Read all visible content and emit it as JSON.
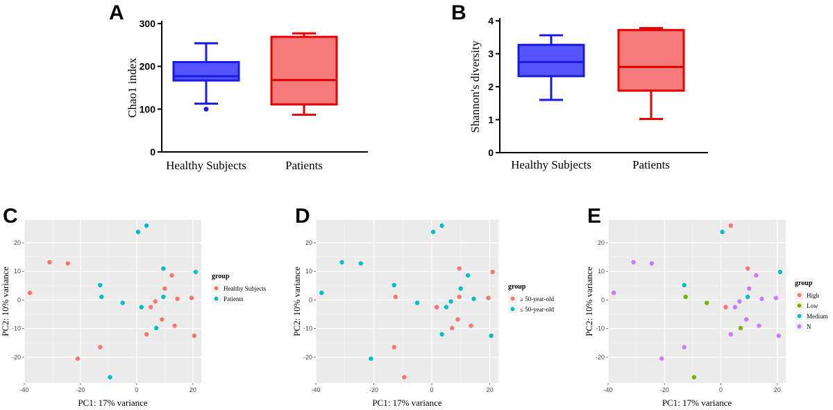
{
  "panels": {
    "a": {
      "letter": "A"
    },
    "b": {
      "letter": "B"
    },
    "c": {
      "letter": "C"
    },
    "d": {
      "letter": "D"
    },
    "e": {
      "letter": "E"
    }
  },
  "chart_data": [
    {
      "id": "a",
      "type": "box",
      "ylabel": "Chao1 index",
      "ylim": [
        0,
        300
      ],
      "yticks": [
        0,
        100,
        200,
        300
      ],
      "categories": [
        "Healthy Subjects",
        "Patients"
      ],
      "colors": {
        "fill": [
          "#5555ff",
          "#f57a7a"
        ],
        "stroke": [
          "#1a1ae6",
          "#e60000"
        ]
      },
      "boxes": [
        {
          "name": "Healthy Subjects",
          "min": 113,
          "q1": 167,
          "median": 177,
          "q3": 210,
          "max": 254,
          "outliers": [
            100
          ]
        },
        {
          "name": "Patients",
          "min": 87,
          "q1": 111,
          "median": 168,
          "q3": 269,
          "max": 277,
          "outliers": []
        }
      ]
    },
    {
      "id": "b",
      "type": "box",
      "ylabel": "Shannon's diversity",
      "ylim": [
        0,
        4
      ],
      "yticks": [
        0,
        1,
        2,
        3,
        4
      ],
      "categories": [
        "Healthy Subjects",
        "Patients"
      ],
      "colors": {
        "fill": [
          "#5555ff",
          "#f57a7a"
        ],
        "stroke": [
          "#1a1ae6",
          "#e60000"
        ]
      },
      "boxes": [
        {
          "name": "Healthy Subjects",
          "min": 1.6,
          "q1": 2.32,
          "median": 2.75,
          "q3": 3.27,
          "max": 3.56,
          "outliers": []
        },
        {
          "name": "Patients",
          "min": 1.02,
          "q1": 1.88,
          "median": 2.6,
          "q3": 3.72,
          "max": 3.78,
          "outliers": []
        }
      ]
    },
    {
      "id": "c",
      "type": "scatter",
      "xlabel": "PC1: 17% variance",
      "ylabel": "PC2: 10% variance",
      "xlim": [
        -40,
        23
      ],
      "ylim": [
        -29,
        28
      ],
      "xticks": [
        -40,
        -20,
        0,
        20
      ],
      "yticks": [
        -20,
        -10,
        0,
        10,
        20
      ],
      "legend_title": "group",
      "groups": [
        {
          "name": "Healthy Subjects",
          "color": "#f8766d"
        },
        {
          "name": "Patients",
          "color": "#00bfc4"
        }
      ],
      "points": [
        {
          "x": -38,
          "y": 2.5,
          "g": 0
        },
        {
          "x": -31,
          "y": 13.2,
          "g": 0
        },
        {
          "x": -24.5,
          "y": 12.8,
          "g": 0
        },
        {
          "x": -21,
          "y": -20.5,
          "g": 0
        },
        {
          "x": -13,
          "y": -16.5,
          "g": 0
        },
        {
          "x": -13,
          "y": 5.2,
          "g": 1
        },
        {
          "x": -12.5,
          "y": 1.1,
          "g": 1
        },
        {
          "x": -9.5,
          "y": -27,
          "g": 1
        },
        {
          "x": -5,
          "y": -1,
          "g": 1
        },
        {
          "x": 0.5,
          "y": 23.8,
          "g": 1
        },
        {
          "x": 3.5,
          "y": 26,
          "g": 1
        },
        {
          "x": 1.7,
          "y": -2.5,
          "g": 1
        },
        {
          "x": 3.5,
          "y": -12,
          "g": 0
        },
        {
          "x": 5,
          "y": -2.5,
          "g": 0
        },
        {
          "x": 6.6,
          "y": -0.5,
          "g": 0
        },
        {
          "x": 7,
          "y": -9.8,
          "g": 1
        },
        {
          "x": 9.5,
          "y": 11,
          "g": 1
        },
        {
          "x": 9.5,
          "y": 1.1,
          "g": 1
        },
        {
          "x": 9,
          "y": -6.8,
          "g": 0
        },
        {
          "x": 10,
          "y": 4,
          "g": 0
        },
        {
          "x": 12.5,
          "y": 8.6,
          "g": 0
        },
        {
          "x": 13.5,
          "y": -9,
          "g": 0
        },
        {
          "x": 14.5,
          "y": 0.4,
          "g": 0
        },
        {
          "x": 19.5,
          "y": 0.7,
          "g": 0
        },
        {
          "x": 20.5,
          "y": -12.5,
          "g": 0
        },
        {
          "x": 21,
          "y": 9.8,
          "g": 1
        }
      ]
    },
    {
      "id": "d",
      "type": "scatter",
      "xlabel": "PC1: 17% variance",
      "ylabel": "PC2: 10% variance",
      "xlim": [
        -40,
        23
      ],
      "ylim": [
        -29,
        28
      ],
      "xticks": [
        -40,
        -20,
        0,
        20
      ],
      "yticks": [
        -20,
        -10,
        0,
        10,
        20
      ],
      "legend_title": "group",
      "groups": [
        {
          "name": "≥ 50-year-old",
          "color": "#f8766d"
        },
        {
          "name": "≤ 50-year-old",
          "color": "#00bfc4"
        }
      ],
      "points": [
        {
          "x": -38,
          "y": 2.5,
          "g": 1
        },
        {
          "x": -31,
          "y": 13.2,
          "g": 1
        },
        {
          "x": -24.5,
          "y": 12.8,
          "g": 1
        },
        {
          "x": -21,
          "y": -20.5,
          "g": 1
        },
        {
          "x": -13,
          "y": -16.5,
          "g": 0
        },
        {
          "x": -13,
          "y": 5.2,
          "g": 1
        },
        {
          "x": -12.5,
          "y": 1.1,
          "g": 0
        },
        {
          "x": -9.5,
          "y": -27,
          "g": 0
        },
        {
          "x": -5,
          "y": -1,
          "g": 1
        },
        {
          "x": 0.5,
          "y": 23.8,
          "g": 1
        },
        {
          "x": 3.5,
          "y": 26,
          "g": 1
        },
        {
          "x": 1.7,
          "y": -2.5,
          "g": 0
        },
        {
          "x": 3.5,
          "y": -12,
          "g": 1
        },
        {
          "x": 5,
          "y": -2.5,
          "g": 1
        },
        {
          "x": 6.6,
          "y": -0.5,
          "g": 1
        },
        {
          "x": 7,
          "y": -9.8,
          "g": 0
        },
        {
          "x": 9.5,
          "y": 11,
          "g": 0
        },
        {
          "x": 9.5,
          "y": 1.1,
          "g": 0
        },
        {
          "x": 9,
          "y": -6.8,
          "g": 0
        },
        {
          "x": 10,
          "y": 4,
          "g": 1
        },
        {
          "x": 12.5,
          "y": 8.6,
          "g": 1
        },
        {
          "x": 13.5,
          "y": -9,
          "g": 0
        },
        {
          "x": 14.5,
          "y": 0.4,
          "g": 1
        },
        {
          "x": 19.5,
          "y": 0.7,
          "g": 0
        },
        {
          "x": 20.5,
          "y": -12.5,
          "g": 1
        },
        {
          "x": 21,
          "y": 9.8,
          "g": 0
        }
      ]
    },
    {
      "id": "e",
      "type": "scatter",
      "xlabel": "PC1: 17% variance",
      "ylabel": "PC2: 10% variance",
      "xlim": [
        -40,
        23
      ],
      "ylim": [
        -29,
        28
      ],
      "xticks": [
        -40,
        -20,
        0,
        20
      ],
      "yticks": [
        -20,
        -10,
        0,
        10,
        20
      ],
      "legend_title": "group",
      "groups": [
        {
          "name": "High",
          "color": "#f8766d"
        },
        {
          "name": "Low",
          "color": "#7cae00"
        },
        {
          "name": "Medium",
          "color": "#00bfc4"
        },
        {
          "name": "N",
          "color": "#c77cff"
        }
      ],
      "points": [
        {
          "x": -38,
          "y": 2.5,
          "g": 3
        },
        {
          "x": -31,
          "y": 13.2,
          "g": 3
        },
        {
          "x": -24.5,
          "y": 12.8,
          "g": 3
        },
        {
          "x": -21,
          "y": -20.5,
          "g": 3
        },
        {
          "x": -13,
          "y": -16.5,
          "g": 3
        },
        {
          "x": -13,
          "y": 5.2,
          "g": 2
        },
        {
          "x": -12.5,
          "y": 1.1,
          "g": 1
        },
        {
          "x": -9.5,
          "y": -27,
          "g": 1
        },
        {
          "x": -5,
          "y": -1,
          "g": 1
        },
        {
          "x": 0.5,
          "y": 23.8,
          "g": 2
        },
        {
          "x": 3.5,
          "y": 26,
          "g": 0
        },
        {
          "x": 1.7,
          "y": -2.5,
          "g": 0
        },
        {
          "x": 3.5,
          "y": -12,
          "g": 3
        },
        {
          "x": 5,
          "y": -2.5,
          "g": 3
        },
        {
          "x": 6.6,
          "y": -0.5,
          "g": 3
        },
        {
          "x": 7,
          "y": -9.8,
          "g": 1
        },
        {
          "x": 9.5,
          "y": 11,
          "g": 0
        },
        {
          "x": 9.5,
          "y": 1.1,
          "g": 2
        },
        {
          "x": 9,
          "y": -6.8,
          "g": 3
        },
        {
          "x": 10,
          "y": 4,
          "g": 3
        },
        {
          "x": 12.5,
          "y": 8.6,
          "g": 3
        },
        {
          "x": 13.5,
          "y": -9,
          "g": 3
        },
        {
          "x": 14.5,
          "y": 0.4,
          "g": 3
        },
        {
          "x": 19.5,
          "y": 0.7,
          "g": 3
        },
        {
          "x": 20.5,
          "y": -12.5,
          "g": 3
        },
        {
          "x": 21,
          "y": 9.8,
          "g": 2
        }
      ]
    }
  ]
}
